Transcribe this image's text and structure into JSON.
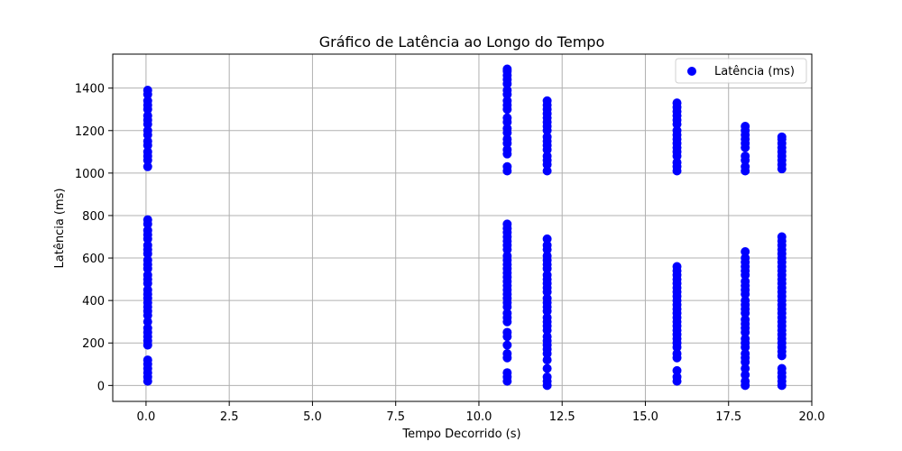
{
  "chart_data": {
    "type": "scatter",
    "title": "Gráfico de Latência ao Longo do Tempo",
    "xlabel": "Tempo Decorrido (s)",
    "ylabel": "Latência (ms)",
    "xlim": [
      -1.0,
      20.0
    ],
    "ylim": [
      -75,
      1560
    ],
    "x_ticks": [
      0.0,
      2.5,
      5.0,
      7.5,
      10.0,
      12.5,
      15.0,
      17.5,
      20.0
    ],
    "x_tick_labels": [
      "0.0",
      "2.5",
      "5.0",
      "7.5",
      "10.0",
      "12.5",
      "15.0",
      "17.5",
      "20.0"
    ],
    "y_ticks": [
      0,
      200,
      400,
      600,
      800,
      1000,
      1200,
      1400
    ],
    "y_tick_labels": [
      "0",
      "200",
      "400",
      "600",
      "800",
      "1000",
      "1200",
      "1400"
    ],
    "grid": true,
    "legend_position": "top-right",
    "colors": {
      "series": "#0000ff",
      "grid": "#b0b0b0",
      "axis": "#000000"
    },
    "series": [
      {
        "name": "Latência (ms)",
        "points": [
          {
            "x": 0.05,
            "y": 20
          },
          {
            "x": 0.05,
            "y": 40
          },
          {
            "x": 0.05,
            "y": 60
          },
          {
            "x": 0.05,
            "y": 80
          },
          {
            "x": 0.05,
            "y": 100
          },
          {
            "x": 0.05,
            "y": 120
          },
          {
            "x": 0.05,
            "y": 190
          },
          {
            "x": 0.05,
            "y": 210
          },
          {
            "x": 0.05,
            "y": 230
          },
          {
            "x": 0.05,
            "y": 250
          },
          {
            "x": 0.05,
            "y": 270
          },
          {
            "x": 0.05,
            "y": 300
          },
          {
            "x": 0.05,
            "y": 330
          },
          {
            "x": 0.05,
            "y": 350
          },
          {
            "x": 0.05,
            "y": 370
          },
          {
            "x": 0.05,
            "y": 390
          },
          {
            "x": 0.05,
            "y": 410
          },
          {
            "x": 0.05,
            "y": 430
          },
          {
            "x": 0.05,
            "y": 450
          },
          {
            "x": 0.05,
            "y": 480
          },
          {
            "x": 0.05,
            "y": 500
          },
          {
            "x": 0.05,
            "y": 520
          },
          {
            "x": 0.05,
            "y": 550
          },
          {
            "x": 0.05,
            "y": 570
          },
          {
            "x": 0.05,
            "y": 590
          },
          {
            "x": 0.05,
            "y": 620
          },
          {
            "x": 0.05,
            "y": 640
          },
          {
            "x": 0.05,
            "y": 660
          },
          {
            "x": 0.05,
            "y": 690
          },
          {
            "x": 0.05,
            "y": 710
          },
          {
            "x": 0.05,
            "y": 730
          },
          {
            "x": 0.05,
            "y": 760
          },
          {
            "x": 0.05,
            "y": 780
          },
          {
            "x": 0.05,
            "y": 1030
          },
          {
            "x": 0.05,
            "y": 1060
          },
          {
            "x": 0.05,
            "y": 1080
          },
          {
            "x": 0.05,
            "y": 1100
          },
          {
            "x": 0.05,
            "y": 1130
          },
          {
            "x": 0.05,
            "y": 1150
          },
          {
            "x": 0.05,
            "y": 1180
          },
          {
            "x": 0.05,
            "y": 1200
          },
          {
            "x": 0.05,
            "y": 1230
          },
          {
            "x": 0.05,
            "y": 1250
          },
          {
            "x": 0.05,
            "y": 1270
          },
          {
            "x": 0.05,
            "y": 1300
          },
          {
            "x": 0.05,
            "y": 1320
          },
          {
            "x": 0.05,
            "y": 1340
          },
          {
            "x": 0.05,
            "y": 1370
          },
          {
            "x": 0.05,
            "y": 1390
          },
          {
            "x": 10.85,
            "y": 20
          },
          {
            "x": 10.85,
            "y": 40
          },
          {
            "x": 10.85,
            "y": 60
          },
          {
            "x": 10.85,
            "y": 130
          },
          {
            "x": 10.85,
            "y": 150
          },
          {
            "x": 10.85,
            "y": 190
          },
          {
            "x": 10.85,
            "y": 230
          },
          {
            "x": 10.85,
            "y": 250
          },
          {
            "x": 10.85,
            "y": 300
          },
          {
            "x": 10.85,
            "y": 320
          },
          {
            "x": 10.85,
            "y": 340
          },
          {
            "x": 10.85,
            "y": 370
          },
          {
            "x": 10.85,
            "y": 390
          },
          {
            "x": 10.85,
            "y": 410
          },
          {
            "x": 10.85,
            "y": 430
          },
          {
            "x": 10.85,
            "y": 450
          },
          {
            "x": 10.85,
            "y": 470
          },
          {
            "x": 10.85,
            "y": 490
          },
          {
            "x": 10.85,
            "y": 510
          },
          {
            "x": 10.85,
            "y": 530
          },
          {
            "x": 10.85,
            "y": 550
          },
          {
            "x": 10.85,
            "y": 570
          },
          {
            "x": 10.85,
            "y": 590
          },
          {
            "x": 10.85,
            "y": 610
          },
          {
            "x": 10.85,
            "y": 640
          },
          {
            "x": 10.85,
            "y": 660
          },
          {
            "x": 10.85,
            "y": 680
          },
          {
            "x": 10.85,
            "y": 700
          },
          {
            "x": 10.85,
            "y": 720
          },
          {
            "x": 10.85,
            "y": 740
          },
          {
            "x": 10.85,
            "y": 760
          },
          {
            "x": 10.85,
            "y": 1010
          },
          {
            "x": 10.85,
            "y": 1030
          },
          {
            "x": 10.85,
            "y": 1090
          },
          {
            "x": 10.85,
            "y": 1110
          },
          {
            "x": 10.85,
            "y": 1140
          },
          {
            "x": 10.85,
            "y": 1160
          },
          {
            "x": 10.85,
            "y": 1190
          },
          {
            "x": 10.85,
            "y": 1210
          },
          {
            "x": 10.85,
            "y": 1240
          },
          {
            "x": 10.85,
            "y": 1260
          },
          {
            "x": 10.85,
            "y": 1300
          },
          {
            "x": 10.85,
            "y": 1320
          },
          {
            "x": 10.85,
            "y": 1340
          },
          {
            "x": 10.85,
            "y": 1370
          },
          {
            "x": 10.85,
            "y": 1390
          },
          {
            "x": 10.85,
            "y": 1420
          },
          {
            "x": 10.85,
            "y": 1440
          },
          {
            "x": 10.85,
            "y": 1460
          },
          {
            "x": 10.85,
            "y": 1480
          },
          {
            "x": 10.85,
            "y": 1490
          },
          {
            "x": 12.05,
            "y": 0
          },
          {
            "x": 12.05,
            "y": 20
          },
          {
            "x": 12.05,
            "y": 40
          },
          {
            "x": 12.05,
            "y": 80
          },
          {
            "x": 12.05,
            "y": 120
          },
          {
            "x": 12.05,
            "y": 150
          },
          {
            "x": 12.05,
            "y": 170
          },
          {
            "x": 12.05,
            "y": 190
          },
          {
            "x": 12.05,
            "y": 210
          },
          {
            "x": 12.05,
            "y": 230
          },
          {
            "x": 12.05,
            "y": 260
          },
          {
            "x": 12.05,
            "y": 280
          },
          {
            "x": 12.05,
            "y": 300
          },
          {
            "x": 12.05,
            "y": 320
          },
          {
            "x": 12.05,
            "y": 350
          },
          {
            "x": 12.05,
            "y": 370
          },
          {
            "x": 12.05,
            "y": 390
          },
          {
            "x": 12.05,
            "y": 410
          },
          {
            "x": 12.05,
            "y": 440
          },
          {
            "x": 12.05,
            "y": 460
          },
          {
            "x": 12.05,
            "y": 480
          },
          {
            "x": 12.05,
            "y": 500
          },
          {
            "x": 12.05,
            "y": 520
          },
          {
            "x": 12.05,
            "y": 550
          },
          {
            "x": 12.05,
            "y": 570
          },
          {
            "x": 12.05,
            "y": 590
          },
          {
            "x": 12.05,
            "y": 610
          },
          {
            "x": 12.05,
            "y": 640
          },
          {
            "x": 12.05,
            "y": 660
          },
          {
            "x": 12.05,
            "y": 690
          },
          {
            "x": 12.05,
            "y": 1010
          },
          {
            "x": 12.05,
            "y": 1040
          },
          {
            "x": 12.05,
            "y": 1060
          },
          {
            "x": 12.05,
            "y": 1080
          },
          {
            "x": 12.05,
            "y": 1110
          },
          {
            "x": 12.05,
            "y": 1130
          },
          {
            "x": 12.05,
            "y": 1150
          },
          {
            "x": 12.05,
            "y": 1170
          },
          {
            "x": 12.05,
            "y": 1200
          },
          {
            "x": 12.05,
            "y": 1220
          },
          {
            "x": 12.05,
            "y": 1240
          },
          {
            "x": 12.05,
            "y": 1260
          },
          {
            "x": 12.05,
            "y": 1280
          },
          {
            "x": 12.05,
            "y": 1300
          },
          {
            "x": 12.05,
            "y": 1320
          },
          {
            "x": 12.05,
            "y": 1340
          },
          {
            "x": 15.95,
            "y": 20
          },
          {
            "x": 15.95,
            "y": 40
          },
          {
            "x": 15.95,
            "y": 70
          },
          {
            "x": 15.95,
            "y": 130
          },
          {
            "x": 15.95,
            "y": 150
          },
          {
            "x": 15.95,
            "y": 180
          },
          {
            "x": 15.95,
            "y": 200
          },
          {
            "x": 15.95,
            "y": 220
          },
          {
            "x": 15.95,
            "y": 240
          },
          {
            "x": 15.95,
            "y": 260
          },
          {
            "x": 15.95,
            "y": 280
          },
          {
            "x": 15.95,
            "y": 300
          },
          {
            "x": 15.95,
            "y": 320
          },
          {
            "x": 15.95,
            "y": 340
          },
          {
            "x": 15.95,
            "y": 360
          },
          {
            "x": 15.95,
            "y": 380
          },
          {
            "x": 15.95,
            "y": 400
          },
          {
            "x": 15.95,
            "y": 420
          },
          {
            "x": 15.95,
            "y": 440
          },
          {
            "x": 15.95,
            "y": 460
          },
          {
            "x": 15.95,
            "y": 480
          },
          {
            "x": 15.95,
            "y": 500
          },
          {
            "x": 15.95,
            "y": 520
          },
          {
            "x": 15.95,
            "y": 540
          },
          {
            "x": 15.95,
            "y": 560
          },
          {
            "x": 15.95,
            "y": 1010
          },
          {
            "x": 15.95,
            "y": 1030
          },
          {
            "x": 15.95,
            "y": 1050
          },
          {
            "x": 15.95,
            "y": 1080
          },
          {
            "x": 15.95,
            "y": 1100
          },
          {
            "x": 15.95,
            "y": 1120
          },
          {
            "x": 15.95,
            "y": 1140
          },
          {
            "x": 15.95,
            "y": 1160
          },
          {
            "x": 15.95,
            "y": 1180
          },
          {
            "x": 15.95,
            "y": 1200
          },
          {
            "x": 15.95,
            "y": 1230
          },
          {
            "x": 15.95,
            "y": 1250
          },
          {
            "x": 15.95,
            "y": 1270
          },
          {
            "x": 15.95,
            "y": 1290
          },
          {
            "x": 15.95,
            "y": 1310
          },
          {
            "x": 15.95,
            "y": 1330
          },
          {
            "x": 18.0,
            "y": 0
          },
          {
            "x": 18.0,
            "y": 20
          },
          {
            "x": 18.0,
            "y": 50
          },
          {
            "x": 18.0,
            "y": 80
          },
          {
            "x": 18.0,
            "y": 110
          },
          {
            "x": 18.0,
            "y": 130
          },
          {
            "x": 18.0,
            "y": 150
          },
          {
            "x": 18.0,
            "y": 180
          },
          {
            "x": 18.0,
            "y": 200
          },
          {
            "x": 18.0,
            "y": 220
          },
          {
            "x": 18.0,
            "y": 250
          },
          {
            "x": 18.0,
            "y": 270
          },
          {
            "x": 18.0,
            "y": 290
          },
          {
            "x": 18.0,
            "y": 310
          },
          {
            "x": 18.0,
            "y": 340
          },
          {
            "x": 18.0,
            "y": 360
          },
          {
            "x": 18.0,
            "y": 380
          },
          {
            "x": 18.0,
            "y": 400
          },
          {
            "x": 18.0,
            "y": 430
          },
          {
            "x": 18.0,
            "y": 450
          },
          {
            "x": 18.0,
            "y": 470
          },
          {
            "x": 18.0,
            "y": 490
          },
          {
            "x": 18.0,
            "y": 520
          },
          {
            "x": 18.0,
            "y": 540
          },
          {
            "x": 18.0,
            "y": 560
          },
          {
            "x": 18.0,
            "y": 580
          },
          {
            "x": 18.0,
            "y": 600
          },
          {
            "x": 18.0,
            "y": 630
          },
          {
            "x": 18.0,
            "y": 1010
          },
          {
            "x": 18.0,
            "y": 1030
          },
          {
            "x": 18.0,
            "y": 1060
          },
          {
            "x": 18.0,
            "y": 1080
          },
          {
            "x": 18.0,
            "y": 1120
          },
          {
            "x": 18.0,
            "y": 1140
          },
          {
            "x": 18.0,
            "y": 1160
          },
          {
            "x": 18.0,
            "y": 1180
          },
          {
            "x": 18.0,
            "y": 1200
          },
          {
            "x": 18.0,
            "y": 1220
          },
          {
            "x": 19.1,
            "y": 0
          },
          {
            "x": 19.1,
            "y": 20
          },
          {
            "x": 19.1,
            "y": 40
          },
          {
            "x": 19.1,
            "y": 60
          },
          {
            "x": 19.1,
            "y": 80
          },
          {
            "x": 19.1,
            "y": 140
          },
          {
            "x": 19.1,
            "y": 160
          },
          {
            "x": 19.1,
            "y": 180
          },
          {
            "x": 19.1,
            "y": 200
          },
          {
            "x": 19.1,
            "y": 220
          },
          {
            "x": 19.1,
            "y": 240
          },
          {
            "x": 19.1,
            "y": 260
          },
          {
            "x": 19.1,
            "y": 280
          },
          {
            "x": 19.1,
            "y": 300
          },
          {
            "x": 19.1,
            "y": 320
          },
          {
            "x": 19.1,
            "y": 340
          },
          {
            "x": 19.1,
            "y": 360
          },
          {
            "x": 19.1,
            "y": 380
          },
          {
            "x": 19.1,
            "y": 400
          },
          {
            "x": 19.1,
            "y": 420
          },
          {
            "x": 19.1,
            "y": 440
          },
          {
            "x": 19.1,
            "y": 460
          },
          {
            "x": 19.1,
            "y": 480
          },
          {
            "x": 19.1,
            "y": 500
          },
          {
            "x": 19.1,
            "y": 520
          },
          {
            "x": 19.1,
            "y": 540
          },
          {
            "x": 19.1,
            "y": 560
          },
          {
            "x": 19.1,
            "y": 580
          },
          {
            "x": 19.1,
            "y": 600
          },
          {
            "x": 19.1,
            "y": 620
          },
          {
            "x": 19.1,
            "y": 640
          },
          {
            "x": 19.1,
            "y": 660
          },
          {
            "x": 19.1,
            "y": 680
          },
          {
            "x": 19.1,
            "y": 700
          },
          {
            "x": 19.1,
            "y": 1020
          },
          {
            "x": 19.1,
            "y": 1040
          },
          {
            "x": 19.1,
            "y": 1060
          },
          {
            "x": 19.1,
            "y": 1080
          },
          {
            "x": 19.1,
            "y": 1100
          },
          {
            "x": 19.1,
            "y": 1120
          },
          {
            "x": 19.1,
            "y": 1140
          },
          {
            "x": 19.1,
            "y": 1160
          },
          {
            "x": 19.1,
            "y": 1170
          }
        ]
      }
    ]
  }
}
